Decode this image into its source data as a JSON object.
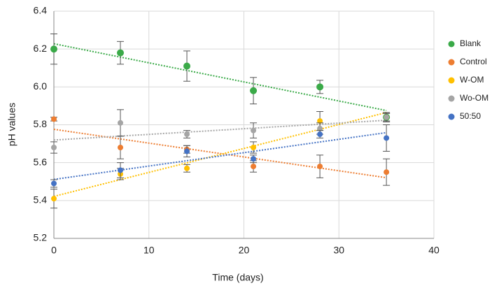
{
  "chart_data": {
    "type": "scatter",
    "x_label": "Time (days)",
    "y_label": "pH values",
    "x": [
      0,
      7,
      14,
      21,
      28,
      35
    ],
    "series": [
      {
        "name": "Blank",
        "color": "#3aaa48",
        "values": [
          6.2,
          6.18,
          6.11,
          5.98,
          6.0,
          5.84
        ],
        "errors": [
          0.08,
          0.06,
          0.08,
          0.07,
          0.035,
          0.025
        ]
      },
      {
        "name": "Control",
        "color": "#ed7d31",
        "values": [
          5.83,
          5.68,
          5.67,
          5.58,
          5.58,
          5.55
        ],
        "errors": [
          0.01,
          0.06,
          0.02,
          0.03,
          0.06,
          0.07
        ]
      },
      {
        "name": "W-OM",
        "color": "#ffc000",
        "values": [
          5.41,
          5.54,
          5.57,
          5.68,
          5.82,
          5.84
        ],
        "errors": [
          0.05,
          0.03,
          0.02,
          0.03,
          0.05,
          0.02
        ]
      },
      {
        "name": "Wo-OM",
        "color": "#a5a5a5",
        "values": [
          5.68,
          5.81,
          5.75,
          5.77,
          5.78,
          5.84
        ],
        "errors": [
          0.03,
          0.07,
          0.02,
          0.04,
          0.03,
          0.02
        ]
      },
      {
        "name": "50:50",
        "color": "#4472c4",
        "values": [
          5.49,
          5.56,
          5.66,
          5.62,
          5.75,
          5.73
        ],
        "errors": [
          0.02,
          0.04,
          0.03,
          0.02,
          0.02,
          0.07
        ]
      }
    ],
    "xlim": [
      0,
      40
    ],
    "xticks": [
      0,
      10,
      20,
      30,
      40
    ],
    "ylim": [
      5.2,
      6.4
    ],
    "yticks": [
      5.2,
      5.4,
      5.6,
      5.8,
      {
        "value": 6,
        "label": "6.0"
      },
      6.2,
      6.4
    ],
    "grid": true,
    "trendline": true,
    "error_bars": true,
    "legend": "right"
  }
}
